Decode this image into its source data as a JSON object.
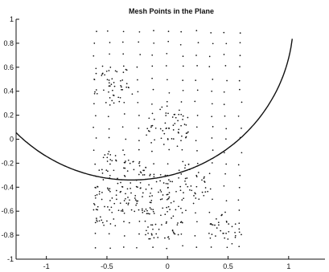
{
  "chart_data": {
    "type": "scatter",
    "title": "Mesh Points in the Plane",
    "xlabel": "",
    "ylabel": "",
    "xlim": [
      -1.25,
      1.3
    ],
    "ylim": [
      -1,
      1
    ],
    "grid": false,
    "x_ticks": [
      -1,
      -0.5,
      0,
      0.5,
      1
    ],
    "x_tick_labels": [
      "-1",
      "-0.5",
      "0",
      "0.5",
      "1"
    ],
    "y_ticks": [
      -1,
      -0.8,
      -0.6,
      -0.4,
      -0.2,
      0,
      0.2,
      0.4,
      0.6,
      0.8,
      1
    ],
    "y_tick_labels": [
      "-1",
      "-0.8",
      "-0.6",
      "-0.4",
      "-0.2",
      "0",
      "0.2",
      "0.4",
      "0.6",
      "0.8",
      "1"
    ],
    "mesh_region": {
      "x_range": [
        -0.6,
        0.6
      ],
      "y_range": [
        -0.9,
        0.9
      ]
    },
    "dense_clusters": [
      {
        "cx": -0.45,
        "cy": 0.46,
        "r": 0.17
      },
      {
        "cx": -0.42,
        "cy": -0.42,
        "r": 0.32
      },
      {
        "cx": 0.12,
        "cy": -0.4,
        "r": 0.2
      },
      {
        "cx": -0.05,
        "cy": -0.72,
        "r": 0.16
      },
      {
        "cx": 0.48,
        "cy": -0.75,
        "r": 0.14
      },
      {
        "cx": 0.0,
        "cy": 0.1,
        "r": 0.18
      }
    ],
    "curve": {
      "type": "circular-arc",
      "center": [
        -0.3,
        1.0
      ],
      "radius": 1.34,
      "x_range": [
        -1.25,
        1.05
      ]
    },
    "colors": {
      "points": "#111111",
      "curve": "#111111",
      "axes": "#111111"
    }
  }
}
